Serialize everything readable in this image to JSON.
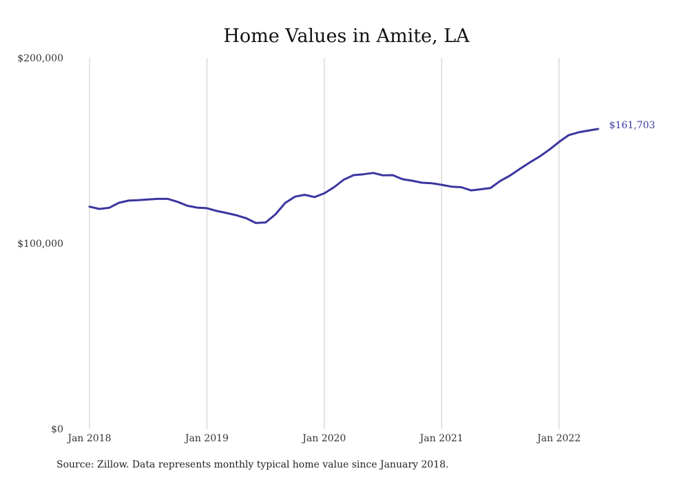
{
  "chart_data": {
    "type": "line",
    "title": "Home Values in Amite, LA",
    "xlabel": "",
    "ylabel": "",
    "ylim": [
      0,
      200000
    ],
    "y_ticks": [
      {
        "value": 0,
        "label": "$0"
      },
      {
        "value": 100000,
        "label": "$100,000"
      },
      {
        "value": 200000,
        "label": "$200,000"
      }
    ],
    "x_ticks": [
      {
        "month_index": 0,
        "label": "Jan 2018"
      },
      {
        "month_index": 12,
        "label": "Jan 2019"
      },
      {
        "month_index": 24,
        "label": "Jan 2020"
      },
      {
        "month_index": 36,
        "label": "Jan 2021"
      },
      {
        "month_index": 48,
        "label": "Jan 2022"
      }
    ],
    "grid": {
      "vertical": true,
      "horizontal": false
    },
    "series": [
      {
        "name": "",
        "color": "#3b35a0",
        "end_label": "$161,703",
        "x": [
          "2018-01",
          "2018-02",
          "2018-03",
          "2018-04",
          "2018-05",
          "2018-06",
          "2018-07",
          "2018-08",
          "2018-09",
          "2018-10",
          "2018-11",
          "2018-12",
          "2019-01",
          "2019-02",
          "2019-03",
          "2019-04",
          "2019-05",
          "2019-06",
          "2019-07",
          "2019-08",
          "2019-09",
          "2019-10",
          "2019-11",
          "2019-12",
          "2020-01",
          "2020-02",
          "2020-03",
          "2020-04",
          "2020-05",
          "2020-06",
          "2020-07",
          "2020-08",
          "2020-09",
          "2020-10",
          "2020-11",
          "2020-12",
          "2021-01",
          "2021-02",
          "2021-03",
          "2021-04",
          "2021-05",
          "2021-06",
          "2021-07",
          "2021-08",
          "2021-09",
          "2021-10",
          "2021-11",
          "2021-12",
          "2022-01",
          "2022-02",
          "2022-03",
          "2022-04",
          "2022-05"
        ],
        "values": [
          119800,
          118600,
          119200,
          121900,
          123100,
          123300,
          123700,
          124000,
          124000,
          122400,
          120300,
          119300,
          119000,
          117500,
          116400,
          115200,
          113600,
          111000,
          111300,
          115600,
          121800,
          125200,
          126200,
          125000,
          127000,
          130300,
          134400,
          136800,
          137300,
          138000,
          136700,
          136800,
          134600,
          133800,
          132700,
          132400,
          131600,
          130600,
          130300,
          128600,
          129200,
          129900,
          133700,
          136600,
          140200,
          143600,
          146800,
          150500,
          154700,
          158400,
          159900,
          160800,
          161703
        ]
      }
    ]
  },
  "source_note": "Source: Zillow. Data represents monthly typical home value since January 2018."
}
